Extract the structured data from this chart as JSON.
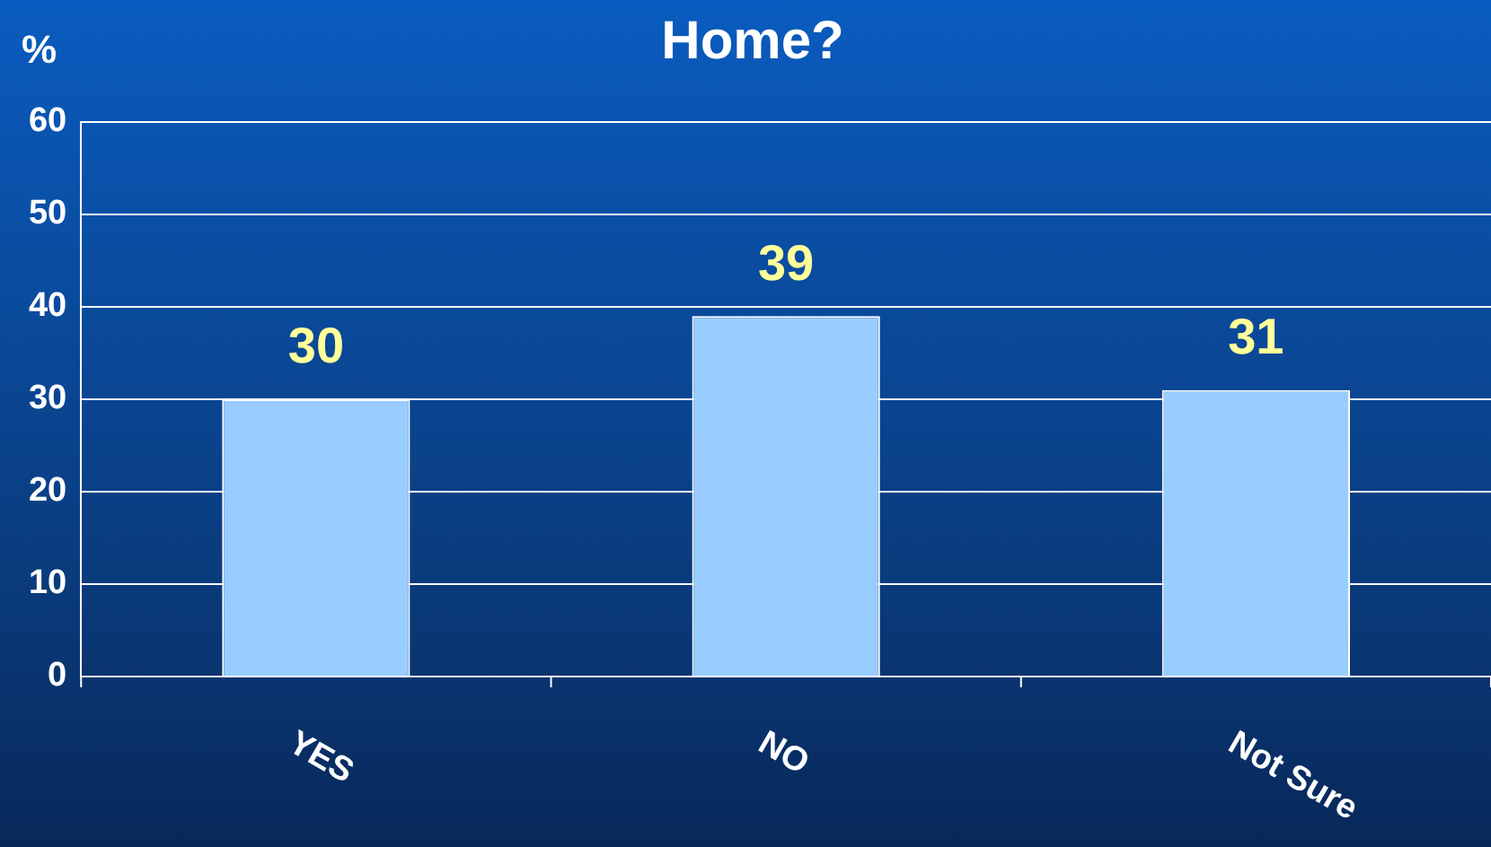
{
  "chart_data": {
    "type": "bar",
    "title": "Home?",
    "ylabel": "%",
    "categories": [
      "YES",
      "NO",
      "Not Sure"
    ],
    "values": [
      30,
      39,
      31
    ],
    "color": "#99ccff",
    "ylim": [
      0,
      60
    ],
    "yticks": [
      0,
      10,
      20,
      30,
      40,
      50,
      60
    ],
    "grid": "y",
    "data_labels": true,
    "legend": false
  }
}
